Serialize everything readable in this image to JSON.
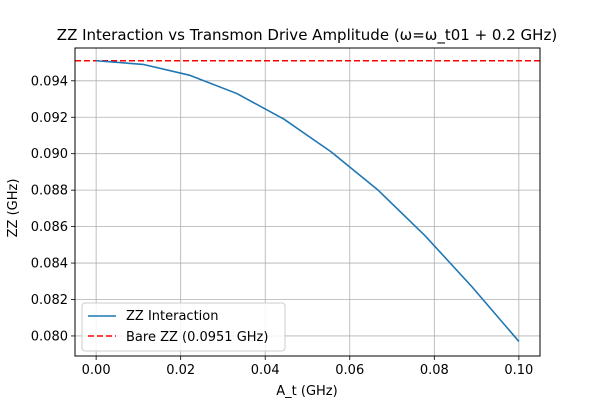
{
  "chart_data": {
    "type": "line",
    "title": "ZZ Interaction vs Transmon Drive Amplitude (ω=ω_t01 + 0.2 GHz)",
    "xlabel": "A_t (GHz)",
    "ylabel": "ZZ (GHz)",
    "xlim": [
      -0.005,
      0.105
    ],
    "ylim": [
      0.0789,
      0.0958
    ],
    "x_ticks": [
      0.0,
      0.02,
      0.04,
      0.06,
      0.08,
      0.1
    ],
    "x_tick_labels": [
      "0.00",
      "0.02",
      "0.04",
      "0.06",
      "0.08",
      "0.10"
    ],
    "y_ticks": [
      0.08,
      0.082,
      0.084,
      0.086,
      0.088,
      0.09,
      0.092,
      0.094
    ],
    "y_tick_labels": [
      "0.080",
      "0.082",
      "0.084",
      "0.086",
      "0.088",
      "0.090",
      "0.092",
      "0.094"
    ],
    "grid": true,
    "legend_position": "lower-left",
    "series": [
      {
        "name": "ZZ Interaction",
        "style": "solid",
        "color": "#1f77b4",
        "x": [
          0.0,
          0.0111,
          0.0222,
          0.0333,
          0.0444,
          0.0556,
          0.0667,
          0.0778,
          0.0889,
          0.1
        ],
        "y": [
          0.0951,
          0.0949,
          0.0943,
          0.0933,
          0.0919,
          0.0901,
          0.088,
          0.0855,
          0.0827,
          0.0797
        ]
      }
    ],
    "reference_lines": [
      {
        "name": "Bare ZZ (0.0951 GHz)",
        "orientation": "horizontal",
        "style": "dashed",
        "color": "#ff0000",
        "y": 0.0951
      }
    ]
  }
}
